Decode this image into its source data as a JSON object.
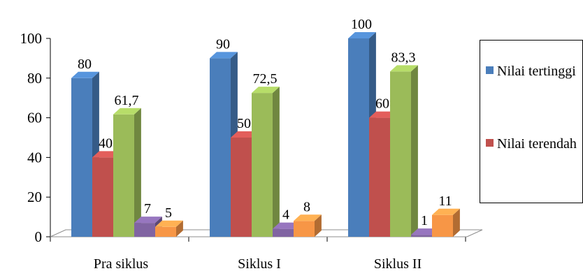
{
  "chart_data": {
    "type": "bar",
    "categories": [
      "Pra siklus",
      "Siklus I",
      "Siklus II"
    ],
    "series": [
      {
        "name": "Nilai tertinggi",
        "color": "#4a7ebb",
        "values": [
          80,
          90,
          100
        ],
        "labels": [
          "80",
          "90",
          "100"
        ]
      },
      {
        "name": "Nilai terendah",
        "color": "#c0504d",
        "values": [
          40,
          50,
          60
        ],
        "labels": [
          "40",
          "50",
          "60"
        ]
      },
      {
        "name": "",
        "color": "#9bbb59",
        "values": [
          61.7,
          72.5,
          83.3
        ],
        "labels": [
          "61,7",
          "72,5",
          "83,3"
        ]
      },
      {
        "name": "",
        "color": "#8064a2",
        "values": [
          7,
          4,
          1
        ],
        "labels": [
          "7",
          "4",
          "1"
        ]
      },
      {
        "name": "",
        "color": "#f79646",
        "values": [
          5,
          8,
          11
        ],
        "labels": [
          "5",
          "8",
          "11"
        ]
      }
    ],
    "yticks": [
      "0",
      "20",
      "40",
      "60",
      "80",
      "100"
    ],
    "ylim": [
      0,
      100
    ],
    "style": "3d-clustered-column",
    "legend": "right"
  },
  "legend": {
    "items": [
      {
        "label": "Nilai tertinggi",
        "color": "#4a7ebb"
      },
      {
        "label": "Nilai terendah",
        "color": "#c0504d"
      }
    ]
  }
}
